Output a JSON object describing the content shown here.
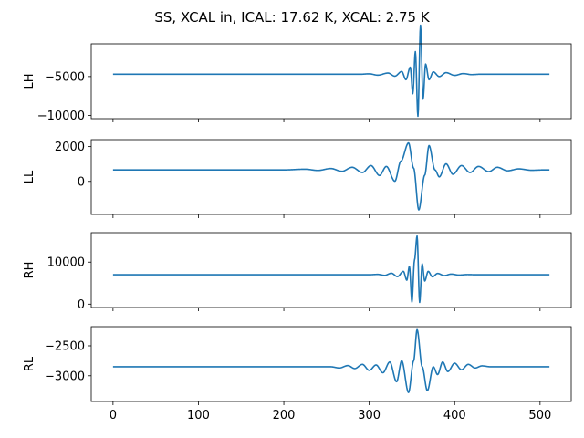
{
  "chart_data": {
    "type": "line",
    "title": "SS, XCAL in, ICAL: 17.62 K, XCAL: 2.75 K",
    "series_color": "#1f77b4",
    "sharex": true,
    "x": {
      "min": 0,
      "max": 511,
      "ticks": [
        0,
        100,
        200,
        300,
        400,
        500
      ],
      "lim": [
        -25.5,
        536.5
      ]
    },
    "panels": [
      {
        "ylabel": "LH",
        "ylim": [
          -10400,
          -800
        ],
        "yticks": [
          -5000,
          -10000
        ],
        "baseline": -4700,
        "features": [
          {
            "x": 290,
            "v": 0
          },
          {
            "x": 300,
            "v": 50
          },
          {
            "x": 310,
            "v": -120
          },
          {
            "x": 322,
            "v": 150
          },
          {
            "x": 330,
            "v": -250
          },
          {
            "x": 338,
            "v": 350
          },
          {
            "x": 343,
            "v": -700
          },
          {
            "x": 348,
            "v": 900
          },
          {
            "x": 351,
            "v": -2500
          },
          {
            "x": 354,
            "v": 2900
          },
          {
            "x": 357,
            "v": -5400
          },
          {
            "x": 360,
            "v": 6300
          },
          {
            "x": 363,
            "v": -3200
          },
          {
            "x": 366,
            "v": 1300
          },
          {
            "x": 370,
            "v": -700
          },
          {
            "x": 375,
            "v": 300
          },
          {
            "x": 382,
            "v": -300
          },
          {
            "x": 390,
            "v": 200
          },
          {
            "x": 400,
            "v": -150
          },
          {
            "x": 410,
            "v": 80
          },
          {
            "x": 420,
            "v": -50
          },
          {
            "x": 430,
            "v": 0
          }
        ]
      },
      {
        "ylabel": "LL",
        "ylim": [
          -1900,
          2400
        ],
        "yticks": [
          2000,
          0
        ],
        "baseline": 660,
        "features": [
          {
            "x": 200,
            "v": 0
          },
          {
            "x": 225,
            "v": 40
          },
          {
            "x": 240,
            "v": -30
          },
          {
            "x": 255,
            "v": 80
          },
          {
            "x": 268,
            "v": -80
          },
          {
            "x": 280,
            "v": 150
          },
          {
            "x": 292,
            "v": -150
          },
          {
            "x": 302,
            "v": 250
          },
          {
            "x": 312,
            "v": -320
          },
          {
            "x": 320,
            "v": 200
          },
          {
            "x": 330,
            "v": -650
          },
          {
            "x": 337,
            "v": 500
          },
          {
            "x": 346,
            "v": 1550
          },
          {
            "x": 352,
            "v": 100
          },
          {
            "x": 358,
            "v": -2300
          },
          {
            "x": 365,
            "v": -300
          },
          {
            "x": 370,
            "v": 1400
          },
          {
            "x": 377,
            "v": 0
          },
          {
            "x": 382,
            "v": -400
          },
          {
            "x": 390,
            "v": 350
          },
          {
            "x": 398,
            "v": -250
          },
          {
            "x": 408,
            "v": 250
          },
          {
            "x": 418,
            "v": -150
          },
          {
            "x": 428,
            "v": 200
          },
          {
            "x": 440,
            "v": -100
          },
          {
            "x": 450,
            "v": 150
          },
          {
            "x": 462,
            "v": -50
          },
          {
            "x": 475,
            "v": 60
          },
          {
            "x": 490,
            "v": -20
          },
          {
            "x": 505,
            "v": 0
          }
        ]
      },
      {
        "ylabel": "RH",
        "ylim": [
          -800,
          17000
        ],
        "yticks": [
          10000,
          0
        ],
        "baseline": 7000,
        "features": [
          {
            "x": 300,
            "v": 0
          },
          {
            "x": 310,
            "v": 80
          },
          {
            "x": 318,
            "v": -150
          },
          {
            "x": 326,
            "v": 350
          },
          {
            "x": 333,
            "v": -450
          },
          {
            "x": 340,
            "v": 800
          },
          {
            "x": 344,
            "v": -1300
          },
          {
            "x": 347,
            "v": 2000
          },
          {
            "x": 350,
            "v": -6500
          },
          {
            "x": 353,
            "v": 3500
          },
          {
            "x": 356,
            "v": 9200
          },
          {
            "x": 359,
            "v": -6600
          },
          {
            "x": 362,
            "v": 2600
          },
          {
            "x": 365,
            "v": -1500
          },
          {
            "x": 369,
            "v": 800
          },
          {
            "x": 374,
            "v": -500
          },
          {
            "x": 380,
            "v": 300
          },
          {
            "x": 388,
            "v": -200
          },
          {
            "x": 396,
            "v": 150
          },
          {
            "x": 405,
            "v": -80
          },
          {
            "x": 415,
            "v": 40
          },
          {
            "x": 425,
            "v": 0
          }
        ]
      },
      {
        "ylabel": "RL",
        "ylim": [
          -3430,
          -2180
        ],
        "yticks": [
          -2500,
          -3000
        ],
        "baseline": -2850,
        "features": [
          {
            "x": 255,
            "v": 0
          },
          {
            "x": 265,
            "v": -20
          },
          {
            "x": 275,
            "v": 20
          },
          {
            "x": 283,
            "v": -30
          },
          {
            "x": 292,
            "v": 40
          },
          {
            "x": 300,
            "v": -60
          },
          {
            "x": 308,
            "v": 30
          },
          {
            "x": 316,
            "v": -100
          },
          {
            "x": 324,
            "v": 80
          },
          {
            "x": 332,
            "v": -250
          },
          {
            "x": 338,
            "v": 100
          },
          {
            "x": 346,
            "v": -430
          },
          {
            "x": 352,
            "v": 100
          },
          {
            "x": 356,
            "v": 620
          },
          {
            "x": 362,
            "v": 0
          },
          {
            "x": 368,
            "v": -400
          },
          {
            "x": 375,
            "v": 0
          },
          {
            "x": 380,
            "v": -130
          },
          {
            "x": 386,
            "v": 80
          },
          {
            "x": 392,
            "v": -80
          },
          {
            "x": 400,
            "v": 60
          },
          {
            "x": 408,
            "v": -50
          },
          {
            "x": 416,
            "v": 40
          },
          {
            "x": 424,
            "v": -20
          },
          {
            "x": 432,
            "v": 15
          },
          {
            "x": 442,
            "v": 0
          }
        ]
      }
    ]
  }
}
